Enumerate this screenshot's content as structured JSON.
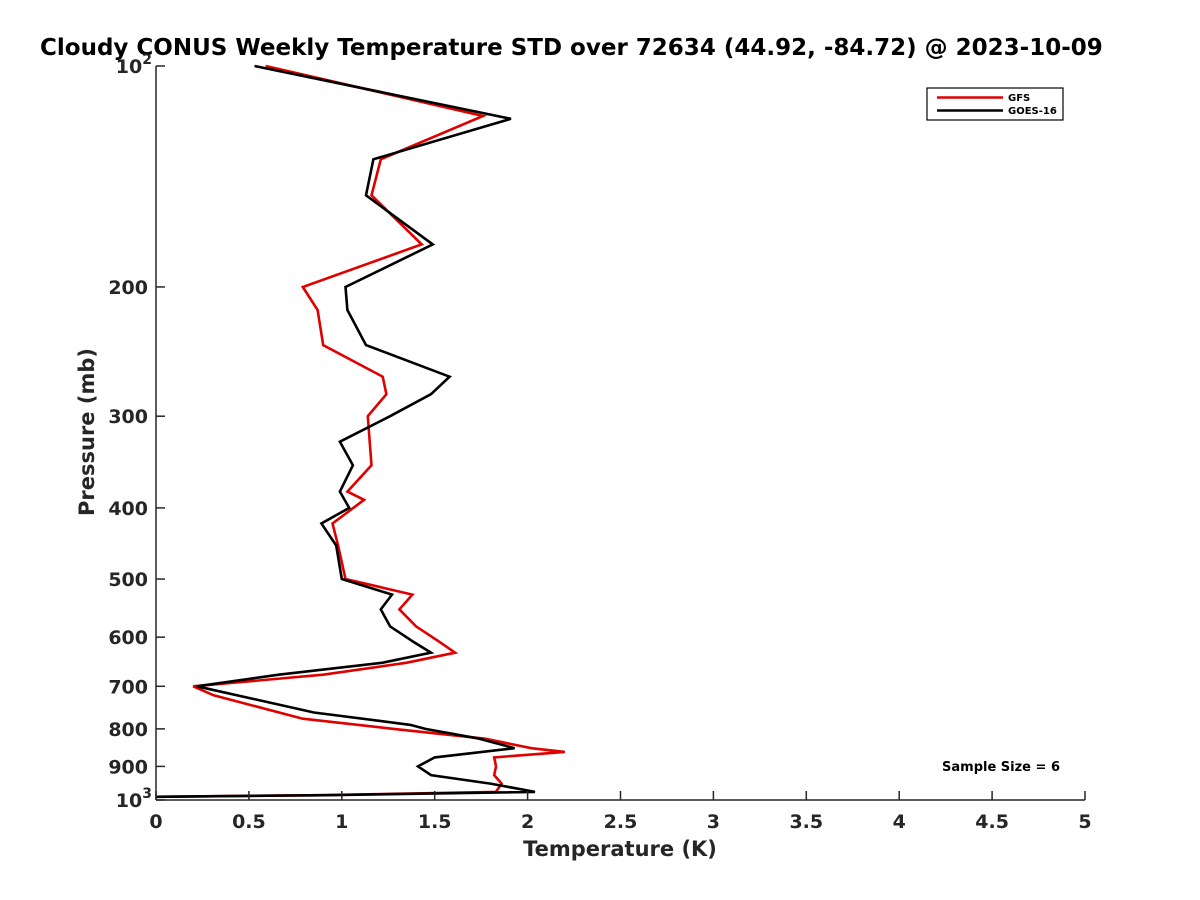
{
  "chart_data": {
    "type": "line",
    "title": "Cloudy CONUS Weekly Temperature STD over 72634 (44.92, -84.72) @ 2023-10-09",
    "xlabel": "Temperature (K)",
    "ylabel": "Pressure (mb)",
    "xlim": [
      0,
      5
    ],
    "ylim": [
      100,
      1000
    ],
    "y_scale": "log",
    "y_reversed": true,
    "grid": false,
    "legend_position": "top-right",
    "x_ticks": [
      "0",
      "0.5",
      "1",
      "1.5",
      "2",
      "2.5",
      "3",
      "3.5",
      "4",
      "4.5",
      "5"
    ],
    "y_ticks": [
      {
        "value": 100,
        "label": "10",
        "sup": "2"
      },
      {
        "value": 200,
        "label": "200"
      },
      {
        "value": 300,
        "label": "300"
      },
      {
        "value": 400,
        "label": "400"
      },
      {
        "value": 500,
        "label": "500"
      },
      {
        "value": 600,
        "label": "600"
      },
      {
        "value": 700,
        "label": "700"
      },
      {
        "value": 800,
        "label": "800"
      },
      {
        "value": 900,
        "label": "900"
      },
      {
        "value": 1000,
        "label": "10",
        "sup": "3"
      }
    ],
    "series": [
      {
        "name": "GFS",
        "color": "#e00000",
        "points": [
          [
            0.59,
            100
          ],
          [
            1.76,
            117
          ],
          [
            1.21,
            134
          ],
          [
            1.16,
            150
          ],
          [
            1.43,
            175
          ],
          [
            0.79,
            200
          ],
          [
            0.87,
            215
          ],
          [
            0.9,
            240
          ],
          [
            1.22,
            265
          ],
          [
            1.24,
            280
          ],
          [
            1.14,
            300
          ],
          [
            1.15,
            325
          ],
          [
            1.16,
            350
          ],
          [
            1.03,
            380
          ],
          [
            1.12,
            390
          ],
          [
            0.95,
            420
          ],
          [
            0.98,
            450
          ],
          [
            1.02,
            500
          ],
          [
            1.38,
            525
          ],
          [
            1.31,
            550
          ],
          [
            1.4,
            580
          ],
          [
            1.53,
            610
          ],
          [
            1.61,
            630
          ],
          [
            1.35,
            650
          ],
          [
            0.9,
            675
          ],
          [
            0.2,
            700
          ],
          [
            0.31,
            720
          ],
          [
            0.79,
            775
          ],
          [
            1.28,
            800
          ],
          [
            1.77,
            825
          ],
          [
            2.02,
            850
          ],
          [
            2.2,
            860
          ],
          [
            1.82,
            875
          ],
          [
            1.83,
            900
          ],
          [
            1.82,
            925
          ],
          [
            1.86,
            950
          ],
          [
            1.83,
            975
          ],
          [
            0.9,
            985
          ],
          [
            0.0,
            990
          ]
        ]
      },
      {
        "name": "GOES-16",
        "color": "#000000",
        "points": [
          [
            0.53,
            100
          ],
          [
            1.91,
            118
          ],
          [
            1.17,
            134
          ],
          [
            1.13,
            150
          ],
          [
            1.49,
            175
          ],
          [
            1.02,
            200
          ],
          [
            1.03,
            215
          ],
          [
            1.13,
            240
          ],
          [
            1.58,
            265
          ],
          [
            1.48,
            280
          ],
          [
            1.26,
            300
          ],
          [
            0.99,
            325
          ],
          [
            1.06,
            350
          ],
          [
            0.99,
            380
          ],
          [
            1.04,
            400
          ],
          [
            0.89,
            420
          ],
          [
            0.97,
            450
          ],
          [
            1.0,
            500
          ],
          [
            1.27,
            525
          ],
          [
            1.21,
            550
          ],
          [
            1.26,
            580
          ],
          [
            1.39,
            610
          ],
          [
            1.48,
            630
          ],
          [
            1.22,
            650
          ],
          [
            0.66,
            675
          ],
          [
            0.22,
            700
          ],
          [
            0.85,
            760
          ],
          [
            1.37,
            790
          ],
          [
            1.45,
            800
          ],
          [
            1.74,
            825
          ],
          [
            1.93,
            850
          ],
          [
            1.5,
            875
          ],
          [
            1.41,
            900
          ],
          [
            1.48,
            925
          ],
          [
            1.8,
            950
          ],
          [
            2.04,
            975
          ],
          [
            0.9,
            985
          ],
          [
            0.0,
            990
          ]
        ]
      }
    ],
    "annotation": "Sample Size = 6"
  }
}
